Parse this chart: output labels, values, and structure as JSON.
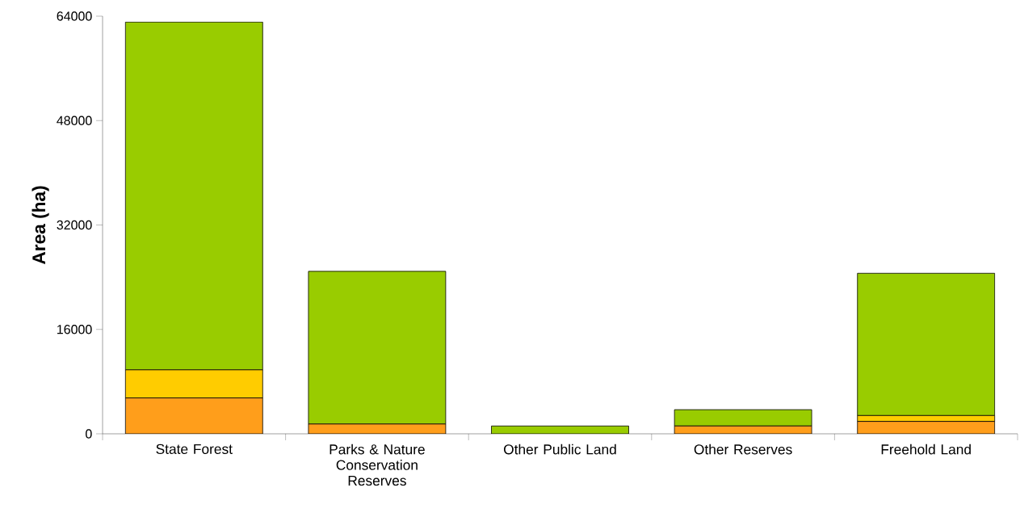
{
  "chart_data": {
    "type": "bar",
    "stacked": true,
    "ylabel": "Area (ha)",
    "categories": [
      "State Forest",
      "Parks & Nature Conservation Reserves",
      "Other Public Land",
      "Other Reserves",
      "Freehold Land"
    ],
    "series": [
      {
        "color": "#ff9e1b",
        "values": [
          5500,
          1500,
          null,
          1200,
          1900
        ]
      },
      {
        "color": "#ffcc00",
        "values": [
          4300,
          0,
          0,
          0,
          900
        ]
      },
      {
        "color": "#99cc00",
        "values": [
          53300,
          23400,
          1200,
          2500,
          21800
        ]
      }
    ],
    "ylim": [
      0,
      64000
    ],
    "yticks": [
      0,
      16000,
      32000,
      48000,
      64000
    ]
  }
}
